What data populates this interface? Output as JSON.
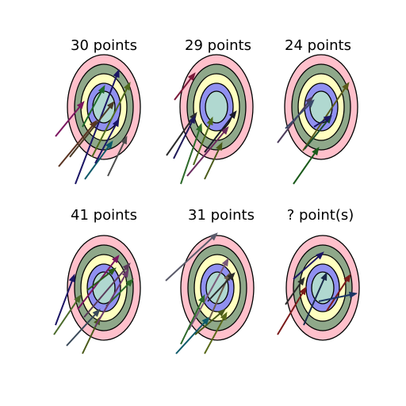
{
  "puzzle": {
    "panels": [
      {
        "title": "30 points",
        "arrows": [
          {
            "color": "#7b1660",
            "ring": "yellow"
          },
          {
            "color": "#1f6a2a",
            "ring": "center"
          },
          {
            "color": "#5a3422",
            "ring": "green"
          },
          {
            "color": "#1b1565",
            "ring": "blue"
          },
          {
            "color": "#4a3a26",
            "ring": "yellow"
          },
          {
            "color": "#4f6a1c",
            "ring": "blue"
          },
          {
            "color": "#0e5a6a",
            "ring": "pink"
          },
          {
            "color": "#4d4d4d",
            "ring": "pink"
          },
          {
            "color": "#1b1565",
            "ring": "yellow"
          }
        ]
      },
      {
        "title": "29 points",
        "arrows": [
          {
            "color": "#7a1a3a",
            "ring": "outside"
          },
          {
            "color": "#2b2b2b",
            "ring": "blue"
          },
          {
            "color": "#1f1a5a",
            "ring": "blue"
          },
          {
            "color": "#2d6a2a",
            "ring": "green"
          },
          {
            "color": "#4e6a1e",
            "ring": "yellow"
          },
          {
            "color": "#6a2a5e",
            "ring": "yellow"
          },
          {
            "color": "#1a1a2a",
            "ring": "blue"
          },
          {
            "color": "#4a5a1a",
            "ring": "pink"
          }
        ]
      },
      {
        "title": "24 points",
        "arrows": [
          {
            "color": "#4a3a5a",
            "ring": "green"
          },
          {
            "color": "#3a4a6a",
            "ring": "yellow"
          },
          {
            "color": "#5a5a1a",
            "ring": "green"
          },
          {
            "color": "#1a4a2a",
            "ring": "blue"
          },
          {
            "color": "#1a5a1a",
            "ring": "pink"
          },
          {
            "color": "#1b1565",
            "ring": "center"
          }
        ]
      },
      {
        "title": "41 points",
        "arrows": [
          {
            "color": "#1b1565",
            "ring": "pink"
          },
          {
            "color": "#4a6a2a",
            "ring": "green"
          },
          {
            "color": "#7a1660",
            "ring": "blue"
          },
          {
            "color": "#2a5a1a",
            "ring": "center"
          },
          {
            "color": "#5a3a5a",
            "ring": "blue"
          },
          {
            "color": "#3a4a5a",
            "ring": "yellow"
          },
          {
            "color": "#4a5a1a",
            "ring": "green"
          },
          {
            "color": "#2d6a2a",
            "ring": "blue"
          },
          {
            "color": "#6a3a6a",
            "ring": "green"
          }
        ]
      },
      {
        "title": "31 points",
        "arrows": [
          {
            "color": "#5a5a6a",
            "ring": "pink"
          },
          {
            "color": "#7a5a7a",
            "ring": "pink"
          },
          {
            "color": "#2d6a2a",
            "ring": "green"
          },
          {
            "color": "#4a5a1a",
            "ring": "yellow"
          },
          {
            "color": "#0e5a6a",
            "ring": "yellow"
          },
          {
            "color": "#5a6a1a",
            "ring": "pink"
          },
          {
            "color": "#6a5a4a",
            "ring": "blue"
          },
          {
            "color": "#2a2a2a",
            "ring": "blue"
          }
        ]
      },
      {
        "title": "? point(s)",
        "arrows": [
          {
            "color": "#1b1565",
            "ring": "green"
          },
          {
            "color": "#7a1a1a",
            "ring": "yellow"
          },
          {
            "color": "#1a2a4a",
            "ring": "center"
          },
          {
            "color": "#7a1a1a",
            "ring": "green"
          },
          {
            "color": "#1b3565",
            "ring": "green"
          },
          {
            "color": "#2a2a2a",
            "ring": "green"
          }
        ]
      }
    ],
    "rings": {
      "pink": "#ffc0cb",
      "green": "#8fa88a",
      "yellow": "#ffffc0",
      "blue": "#9090f0",
      "center": "#b0d8d0",
      "outline": "#000000"
    }
  }
}
